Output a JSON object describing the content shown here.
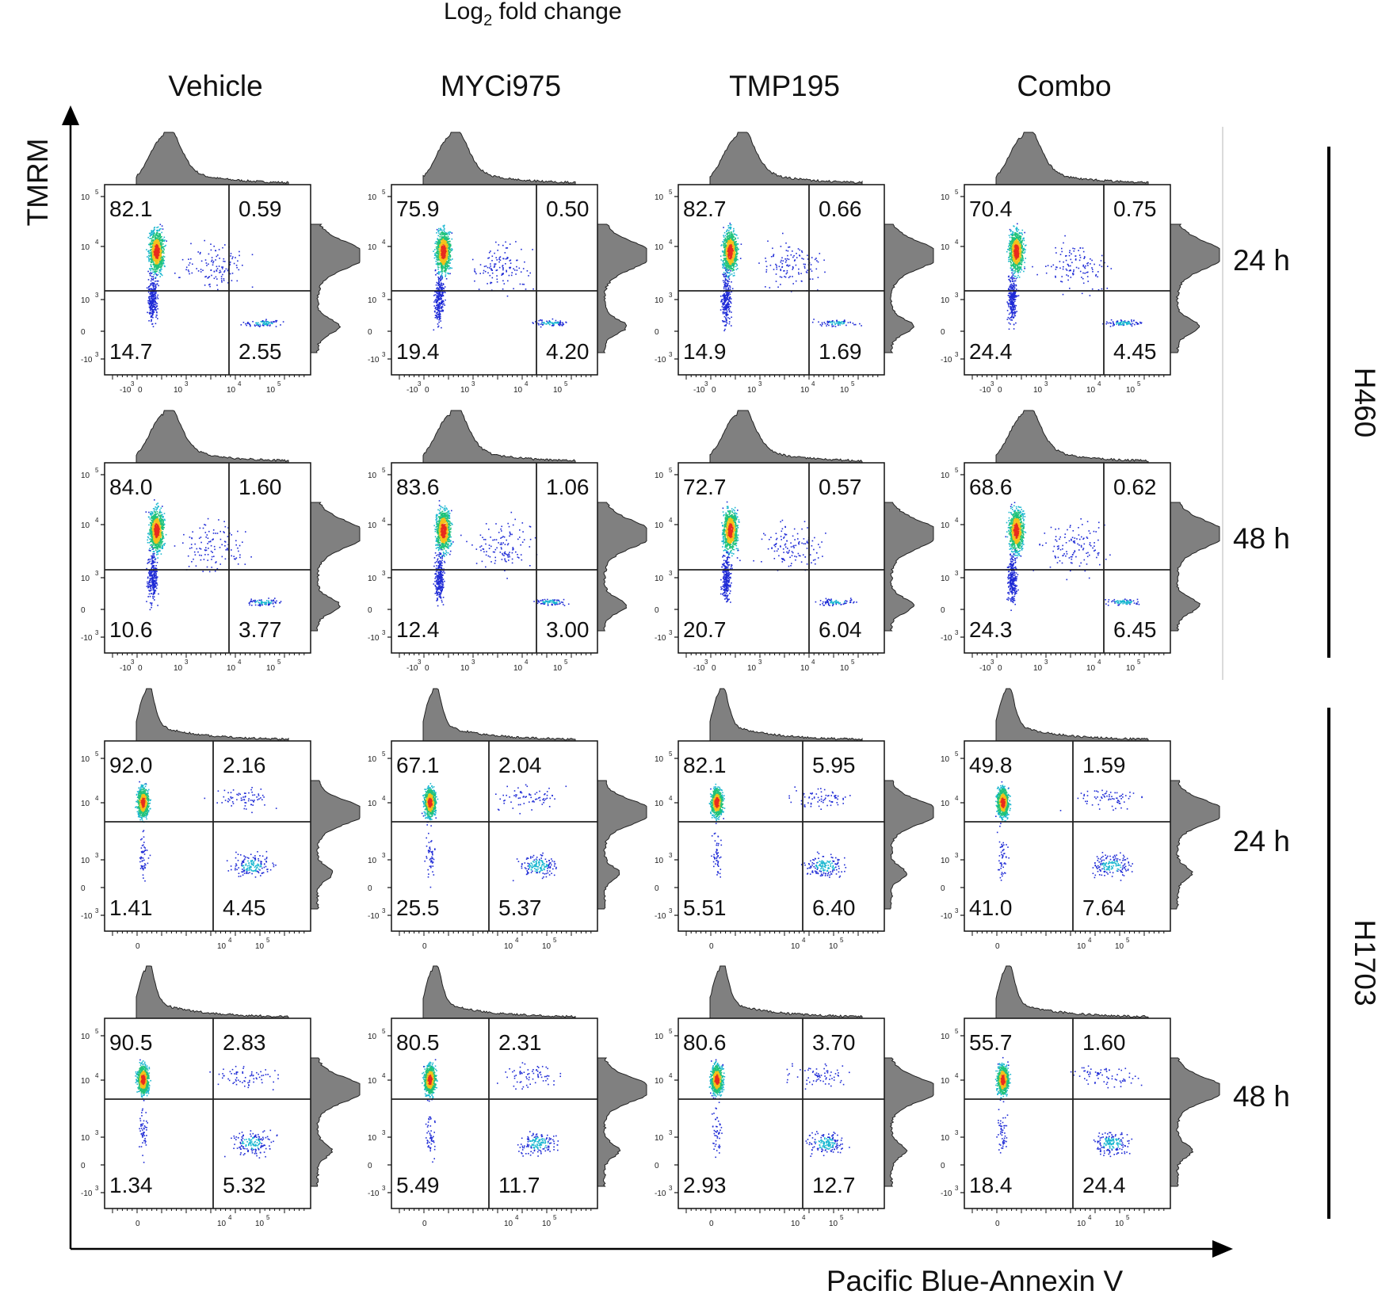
{
  "figure": {
    "title_main": "Log",
    "title_sub": "2",
    "title_rest": " fold change",
    "x_axis_title": "Pacific Blue-Annexin V",
    "y_axis_title": "TMRM"
  },
  "columns": [
    "Vehicle",
    "MYCi975",
    "TMP195",
    "Combo"
  ],
  "row_labels": [
    "24 h",
    "48 h",
    "24 h",
    "48 h"
  ],
  "groups": [
    "H460",
    "H1703"
  ],
  "tick_labels": {
    "y_h460": [
      "-10",
      "0",
      "10",
      "10",
      "10"
    ],
    "y_h460_exp": [
      "3",
      "",
      "3",
      "4",
      "5"
    ],
    "x_h460": [
      "-10",
      "0",
      "10",
      "10",
      "10"
    ],
    "x_h460_exp": [
      "3",
      "",
      "3",
      "4",
      "5"
    ],
    "y_h1703": [
      "-10",
      "0",
      "10",
      "10",
      "10"
    ],
    "y_h1703_exp": [
      "3",
      "",
      "3",
      "4",
      "5"
    ],
    "x_h1703": [
      "0",
      "10",
      "10"
    ],
    "x_h1703_exp": [
      "",
      "4",
      "5"
    ]
  },
  "chart_data": {
    "type": "scatter",
    "description_axes": {
      "x": "Pacific Blue-Annexin V",
      "y": "TMRM"
    },
    "panels": [
      {
        "cell_line": "H460",
        "time": "24 h",
        "treatment": "Vehicle",
        "quadrants": {
          "top_left": "82.1",
          "top_right": "0.59",
          "bottom_left": "14.7",
          "bottom_right": "2.55"
        }
      },
      {
        "cell_line": "H460",
        "time": "24 h",
        "treatment": "MYCi975",
        "quadrants": {
          "top_left": "75.9",
          "top_right": "0.50",
          "bottom_left": "19.4",
          "bottom_right": "4.20"
        }
      },
      {
        "cell_line": "H460",
        "time": "24 h",
        "treatment": "TMP195",
        "quadrants": {
          "top_left": "82.7",
          "top_right": "0.66",
          "bottom_left": "14.9",
          "bottom_right": "1.69"
        }
      },
      {
        "cell_line": "H460",
        "time": "24 h",
        "treatment": "Combo",
        "quadrants": {
          "top_left": "70.4",
          "top_right": "0.75",
          "bottom_left": "24.4",
          "bottom_right": "4.45"
        }
      },
      {
        "cell_line": "H460",
        "time": "48 h",
        "treatment": "Vehicle",
        "quadrants": {
          "top_left": "84.0",
          "top_right": "1.60",
          "bottom_left": "10.6",
          "bottom_right": "3.77"
        }
      },
      {
        "cell_line": "H460",
        "time": "48 h",
        "treatment": "MYCi975",
        "quadrants": {
          "top_left": "83.6",
          "top_right": "1.06",
          "bottom_left": "12.4",
          "bottom_right": "3.00"
        }
      },
      {
        "cell_line": "H460",
        "time": "48 h",
        "treatment": "TMP195",
        "quadrants": {
          "top_left": "72.7",
          "top_right": "0.57",
          "bottom_left": "20.7",
          "bottom_right": "6.04"
        }
      },
      {
        "cell_line": "H460",
        "time": "48 h",
        "treatment": "Combo",
        "quadrants": {
          "top_left": "68.6",
          "top_right": "0.62",
          "bottom_left": "24.3",
          "bottom_right": "6.45"
        }
      },
      {
        "cell_line": "H1703",
        "time": "24 h",
        "treatment": "Vehicle",
        "quadrants": {
          "top_left": "92.0",
          "top_right": "2.16",
          "bottom_left": "1.41",
          "bottom_right": "4.45"
        }
      },
      {
        "cell_line": "H1703",
        "time": "24 h",
        "treatment": "MYCi975",
        "quadrants": {
          "top_left": "67.1",
          "top_right": "2.04",
          "bottom_left": "25.5",
          "bottom_right": "5.37"
        }
      },
      {
        "cell_line": "H1703",
        "time": "24 h",
        "treatment": "TMP195",
        "quadrants": {
          "top_left": "82.1",
          "top_right": "5.95",
          "bottom_left": "5.51",
          "bottom_right": "6.40"
        }
      },
      {
        "cell_line": "H1703",
        "time": "24 h",
        "treatment": "Combo",
        "quadrants": {
          "top_left": "49.8",
          "top_right": "1.59",
          "bottom_left": "41.0",
          "bottom_right": "7.64"
        }
      },
      {
        "cell_line": "H1703",
        "time": "48 h",
        "treatment": "Vehicle",
        "quadrants": {
          "top_left": "90.5",
          "top_right": "2.83",
          "bottom_left": "1.34",
          "bottom_right": "5.32"
        }
      },
      {
        "cell_line": "H1703",
        "time": "48 h",
        "treatment": "MYCi975",
        "quadrants": {
          "top_left": "80.5",
          "top_right": "2.31",
          "bottom_left": "5.49",
          "bottom_right": "11.7"
        }
      },
      {
        "cell_line": "H1703",
        "time": "48 h",
        "treatment": "TMP195",
        "quadrants": {
          "top_left": "80.6",
          "top_right": "3.70",
          "bottom_left": "2.93",
          "bottom_right": "12.7"
        }
      },
      {
        "cell_line": "H1703",
        "time": "48 h",
        "treatment": "Combo",
        "quadrants": {
          "top_left": "55.7",
          "top_right": "1.60",
          "bottom_left": "18.4",
          "bottom_right": "24.4"
        }
      }
    ],
    "colors": {
      "density_low": "#1f2bd6",
      "density_mid": "#1fc27a",
      "density_high": "#e82c1f",
      "histogram": "#808080"
    }
  }
}
